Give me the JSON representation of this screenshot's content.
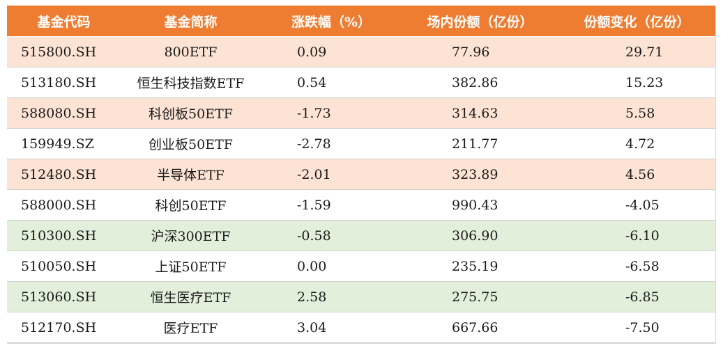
{
  "headers": [
    "基金代码",
    "基金简称",
    "涨跌幅（%）",
    "场内份额（亿份）",
    "份额变化（亿份）"
  ],
  "rows": [
    {
      "style": "peach",
      "code": "515800.SH",
      "name": "800ETF",
      "chg": "0.09",
      "share": "77.96",
      "delta": "29.71"
    },
    {
      "style": "white",
      "code": "513180.SH",
      "name": "恒生科技指数ETF",
      "chg": "0.54",
      "share": "382.86",
      "delta": "15.23"
    },
    {
      "style": "peach",
      "code": "588080.SH",
      "name": "科创板50ETF",
      "chg": "-1.73",
      "share": "314.63",
      "delta": "5.58"
    },
    {
      "style": "white",
      "code": "159949.SZ",
      "name": "创业板50ETF",
      "chg": "-2.78",
      "share": "211.77",
      "delta": "4.72"
    },
    {
      "style": "peach",
      "code": "512480.SH",
      "name": "半导体ETF",
      "chg": "-2.01",
      "share": "323.89",
      "delta": "4.56"
    },
    {
      "style": "white",
      "code": "588000.SH",
      "name": "科创50ETF",
      "chg": "-1.59",
      "share": "990.43",
      "delta": "-4.05"
    },
    {
      "style": "green",
      "code": "510300.SH",
      "name": "沪深300ETF",
      "chg": "-0.58",
      "share": "306.90",
      "delta": "-6.10"
    },
    {
      "style": "white",
      "code": "510050.SH",
      "name": "上证50ETF",
      "chg": "0.00",
      "share": "235.19",
      "delta": "-6.58"
    },
    {
      "style": "green",
      "code": "513060.SH",
      "name": "恒生医疗ETF",
      "chg": "2.58",
      "share": "275.75",
      "delta": "-6.85"
    },
    {
      "style": "white",
      "code": "512170.SH",
      "name": "医疗ETF",
      "chg": "3.04",
      "share": "667.66",
      "delta": "-7.50"
    }
  ]
}
